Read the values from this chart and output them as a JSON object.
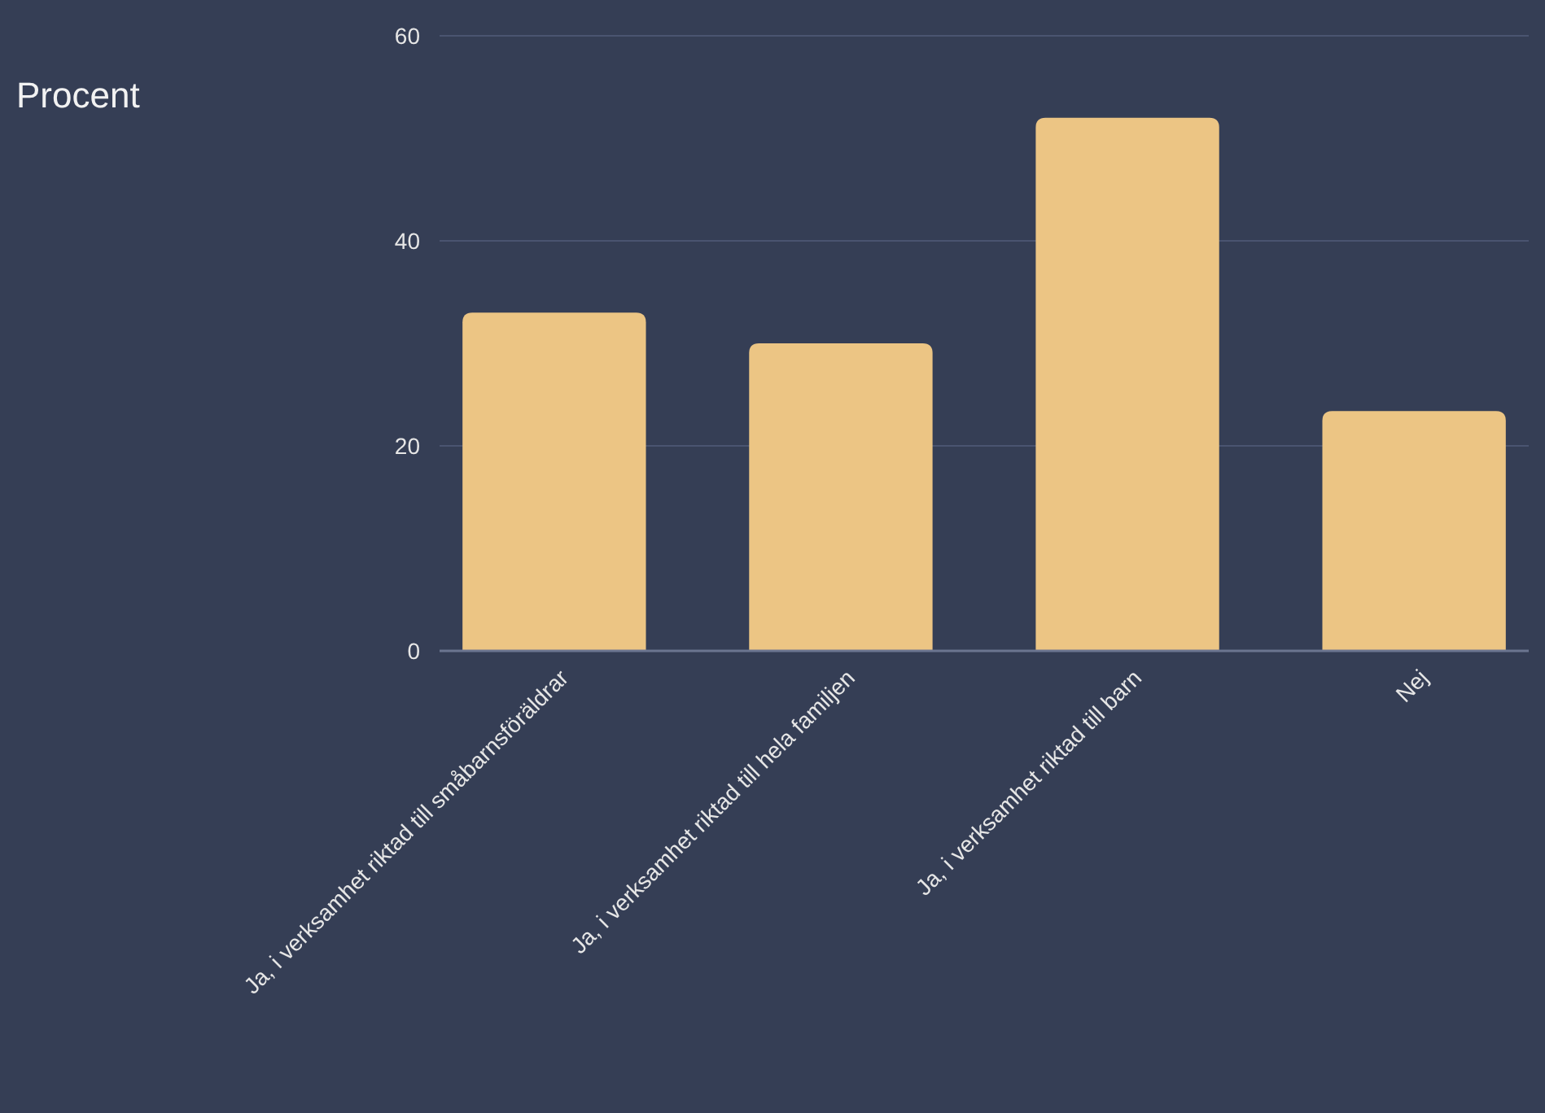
{
  "chart_data": {
    "type": "bar",
    "ylabel": "Procent",
    "categories": [
      "Ja, i verksamhet riktad till småbarnsföräldrar",
      "Ja, i verksamhet riktad till hela familjen",
      "Ja, i verksamhet riktad till barn",
      "Nej"
    ],
    "values": [
      33,
      30,
      52,
      23.4
    ],
    "color": "#ecc584",
    "ylim": [
      0,
      60
    ],
    "yticks": [
      0,
      20,
      40,
      60
    ],
    "grid": "y"
  }
}
